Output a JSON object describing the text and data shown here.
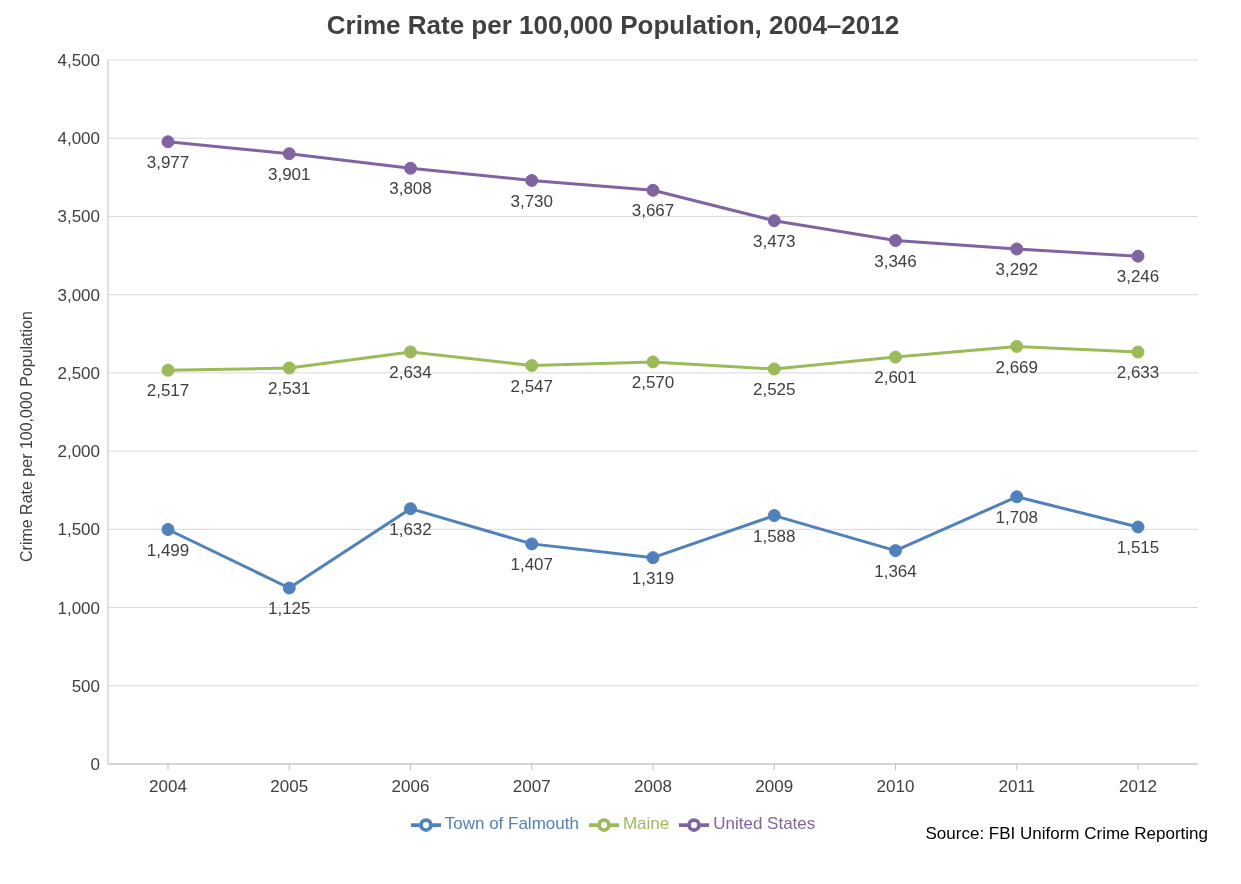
{
  "chart_data": {
    "type": "line",
    "title": "Crime Rate per 100,000 Population, 2004–2012",
    "ylabel": "Crime Rate per 100,000 Population",
    "categories": [
      "2004",
      "2005",
      "2006",
      "2007",
      "2008",
      "2009",
      "2010",
      "2011",
      "2012"
    ],
    "series": [
      {
        "name": "Town of Falmouth",
        "color": "#4f81bd",
        "values": [
          1499,
          1125,
          1632,
          1407,
          1319,
          1588,
          1364,
          1708,
          1515
        ],
        "value_labels": [
          "1,499",
          "1,125",
          "1,632",
          "1,407",
          "1,319",
          "1,588",
          "1,364",
          "1,708",
          "1,515"
        ]
      },
      {
        "name": "Maine",
        "color": "#9bbb59",
        "values": [
          2517,
          2531,
          2634,
          2547,
          2570,
          2525,
          2601,
          2669,
          2633
        ],
        "value_labels": [
          "2,517",
          "2,531",
          "2,634",
          "2,547",
          "2,570",
          "2,525",
          "2,601",
          "2,669",
          "2,633"
        ]
      },
      {
        "name": "United States",
        "color": "#8064a2",
        "values": [
          3977,
          3901,
          3808,
          3730,
          3667,
          3473,
          3346,
          3292,
          3246
        ],
        "value_labels": [
          "3,977",
          "3,901",
          "3,808",
          "3,730",
          "3,667",
          "3,473",
          "3,346",
          "3,292",
          "3,246"
        ]
      }
    ],
    "ylim": [
      0,
      4500
    ],
    "yticks": [
      0,
      {
        "value": 500,
        "label": "500"
      },
      {
        "value": 1000,
        "label": "1,000"
      },
      {
        "value": 1500,
        "label": "1,500"
      },
      {
        "value": 2000,
        "label": "2,000"
      },
      {
        "value": 2500,
        "label": "2,500"
      },
      {
        "value": 3000,
        "label": "3,000"
      },
      {
        "value": 3500,
        "label": "3,500"
      },
      {
        "value": 4000,
        "label": "4,000"
      },
      {
        "value": 4500,
        "label": "4,500"
      }
    ],
    "grid": "y",
    "legend": "bottom",
    "marker": "circle",
    "line_style": "solid",
    "annotations": [
      "Source: FBI Uniform Crime Reporting"
    ]
  }
}
